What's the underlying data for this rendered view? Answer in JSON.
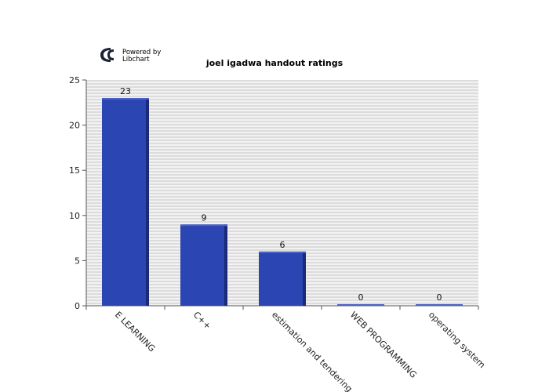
{
  "branding": {
    "line1": "Powered by",
    "line2": "Libchart",
    "logo_icon": "libchart-logo-icon"
  },
  "chart_data": {
    "type": "bar",
    "title": "joel igadwa handout ratings",
    "xlabel": "",
    "ylabel": "",
    "categories": [
      "E LEARNING",
      "C++",
      "estimation and tendering",
      "WEB PROGRAMMING",
      "operating system"
    ],
    "values": [
      23,
      9,
      6,
      0,
      0
    ],
    "ylim": [
      0,
      25
    ],
    "yticks": [
      0,
      5,
      10,
      15,
      20,
      25
    ],
    "grid": true,
    "legend": "none",
    "colors": {
      "bar": "#2b45b3",
      "bar_shadow": "#1a2a78",
      "bar_top": "#4a63c9",
      "grid_stripe_dark": "#dcdcdc",
      "grid_stripe_light": "#f2f2f2",
      "axis": "#555555"
    }
  }
}
